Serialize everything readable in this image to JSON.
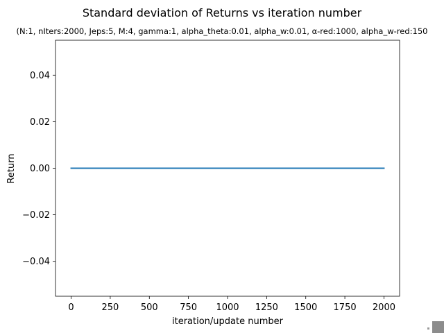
{
  "chart_data": {
    "type": "line",
    "title": "Standard deviation of Returns vs iteration number",
    "subtitle": "(N:1, nIters:2000, Jeps:5, M:4, gamma:1, alpha_theta:0.01, alpha_w:0.01, α-red:1000, alpha_w-red:150",
    "xlabel": "iteration/update number",
    "ylabel": "Return",
    "xlim": [
      -100,
      2100
    ],
    "ylim": [
      -0.055,
      0.055
    ],
    "xticks": [
      0,
      250,
      500,
      750,
      1000,
      1250,
      1500,
      1750,
      2000
    ],
    "xtick_labels": [
      "0",
      "250",
      "500",
      "750",
      "1000",
      "1250",
      "1500",
      "1750",
      "2000"
    ],
    "yticks": [
      -0.04,
      -0.02,
      0.0,
      0.02,
      0.04
    ],
    "ytick_labels": [
      "−0.04",
      "−0.02",
      "0.00",
      "0.02",
      "0.04"
    ],
    "grid": false,
    "series": [
      {
        "x": [
          0,
          2000
        ],
        "values": [
          0.0,
          0.0
        ],
        "color": "#1f77b4"
      }
    ]
  },
  "colors": {
    "line": "#1f77b4",
    "axes": "#000000",
    "background": "#ffffff"
  }
}
